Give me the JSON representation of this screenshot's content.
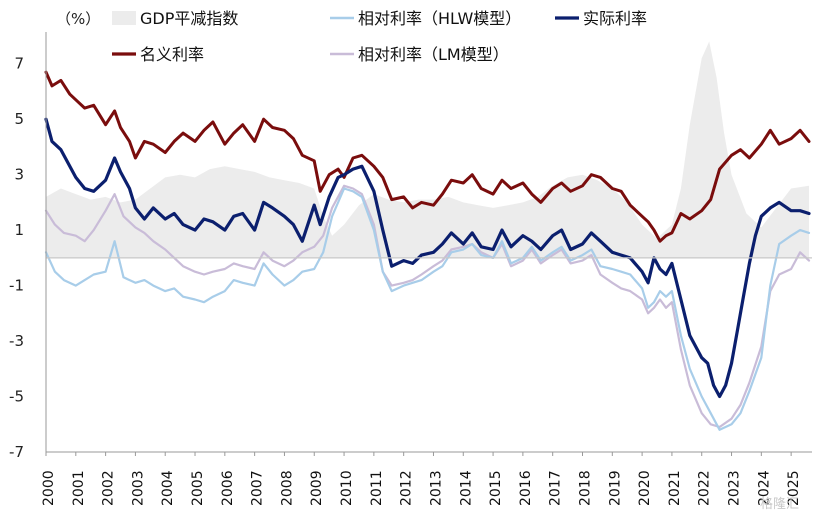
{
  "chart_data": {
    "type": "line",
    "unit_label": "（%）",
    "colors": {
      "gdp_deflator": "#ececec",
      "relative_hlw": "#a8cde9",
      "real_rate": "#0b1f6e",
      "nominal_rate": "#7a0d0d",
      "relative_lm": "#c9bcd8",
      "negative_tick": "#e02020"
    },
    "legend": [
      {
        "key": "gdp_deflator",
        "label": "GDP平减指数",
        "marker": "area"
      },
      {
        "key": "relative_hlw",
        "label": "相对利率（HLW模型）",
        "marker": "line"
      },
      {
        "key": "real_rate",
        "label": "实际利率",
        "marker": "line"
      },
      {
        "key": "nominal_rate",
        "label": "名义利率",
        "marker": "line"
      },
      {
        "key": "relative_lm",
        "label": "相对利率（LM模型）",
        "marker": "line"
      }
    ],
    "y_ticks": [
      "7",
      "5",
      "3",
      "1",
      "-1",
      "-3",
      "-5",
      "-7"
    ],
    "ylim": [
      -7,
      8
    ],
    "x_ticks": [
      "2000",
      "2001",
      "2002",
      "2003",
      "2004",
      "2005",
      "2006",
      "2007",
      "2008",
      "2009",
      "2010",
      "2011",
      "2012",
      "2013",
      "2014",
      "2015",
      "2016",
      "2017",
      "2018",
      "2019",
      "2020",
      "2021",
      "2022",
      "2023",
      "2024",
      "2025"
    ],
    "xlim": [
      2000.0,
      2025.7
    ],
    "series": [
      {
        "key": "gdp_deflator",
        "type": "area",
        "x": [
          2000.0,
          2000.5,
          2001.0,
          2001.5,
          2002.0,
          2002.5,
          2003.0,
          2003.5,
          2004.0,
          2004.5,
          2005.0,
          2005.5,
          2006.0,
          2006.5,
          2007.0,
          2007.5,
          2008.0,
          2008.5,
          2009.0,
          2009.3,
          2009.6,
          2010.0,
          2010.5,
          2011.0,
          2011.5,
          2012.0,
          2012.5,
          2013.0,
          2013.5,
          2014.0,
          2014.5,
          2015.0,
          2015.5,
          2016.0,
          2016.5,
          2017.0,
          2017.5,
          2018.0,
          2018.5,
          2019.0,
          2019.5,
          2020.0,
          2020.5,
          2021.0,
          2021.3,
          2021.6,
          2022.0,
          2022.25,
          2022.5,
          2022.75,
          2023.0,
          2023.5,
          2024.0,
          2024.5,
          2025.0,
          2025.6
        ],
        "y": [
          2.2,
          2.5,
          2.3,
          2.1,
          2.2,
          2.0,
          2.1,
          2.5,
          2.9,
          3.0,
          2.9,
          3.2,
          3.3,
          3.2,
          3.1,
          2.9,
          2.8,
          2.7,
          2.5,
          1.5,
          0.8,
          1.2,
          1.9,
          2.3,
          2.1,
          2.0,
          2.1,
          2.1,
          2.2,
          2.0,
          1.9,
          1.8,
          1.9,
          2.0,
          2.2,
          2.6,
          2.9,
          3.0,
          2.8,
          2.5,
          2.0,
          1.2,
          0.7,
          1.2,
          2.5,
          4.8,
          7.2,
          7.8,
          6.5,
          4.5,
          3.0,
          1.6,
          1.1,
          1.8,
          2.5,
          2.6
        ]
      },
      {
        "key": "nominal_rate",
        "type": "line",
        "x": [
          2000.0,
          2000.2,
          2000.5,
          2000.8,
          2001.0,
          2001.3,
          2001.6,
          2002.0,
          2002.3,
          2002.5,
          2002.8,
          2003.0,
          2003.3,
          2003.6,
          2004.0,
          2004.3,
          2004.6,
          2005.0,
          2005.3,
          2005.6,
          2006.0,
          2006.3,
          2006.6,
          2007.0,
          2007.3,
          2007.6,
          2008.0,
          2008.3,
          2008.6,
          2009.0,
          2009.2,
          2009.5,
          2009.8,
          2010.0,
          2010.3,
          2010.6,
          2011.0,
          2011.3,
          2011.6,
          2012.0,
          2012.3,
          2012.6,
          2013.0,
          2013.3,
          2013.6,
          2014.0,
          2014.3,
          2014.6,
          2015.0,
          2015.3,
          2015.6,
          2016.0,
          2016.3,
          2016.6,
          2017.0,
          2017.3,
          2017.6,
          2018.0,
          2018.3,
          2018.6,
          2019.0,
          2019.3,
          2019.6,
          2020.0,
          2020.2,
          2020.4,
          2020.6,
          2020.8,
          2021.0,
          2021.3,
          2021.6,
          2022.0,
          2022.3,
          2022.6,
          2023.0,
          2023.3,
          2023.6,
          2024.0,
          2024.3,
          2024.6,
          2025.0,
          2025.3,
          2025.6
        ],
        "y": [
          6.7,
          6.2,
          6.4,
          5.9,
          5.7,
          5.4,
          5.5,
          4.8,
          5.3,
          4.7,
          4.2,
          3.6,
          4.2,
          4.1,
          3.8,
          4.2,
          4.5,
          4.2,
          4.6,
          4.9,
          4.1,
          4.5,
          4.8,
          4.2,
          5.0,
          4.7,
          4.6,
          4.3,
          3.7,
          3.5,
          2.4,
          3.0,
          3.2,
          2.9,
          3.6,
          3.7,
          3.3,
          2.9,
          2.1,
          2.2,
          1.8,
          2.0,
          1.9,
          2.3,
          2.8,
          2.7,
          3.0,
          2.5,
          2.3,
          2.8,
          2.5,
          2.7,
          2.3,
          2.0,
          2.5,
          2.7,
          2.4,
          2.6,
          3.0,
          2.9,
          2.5,
          2.4,
          1.9,
          1.5,
          1.3,
          1.0,
          0.6,
          0.8,
          0.9,
          1.6,
          1.4,
          1.7,
          2.1,
          3.2,
          3.7,
          3.9,
          3.6,
          4.1,
          4.6,
          4.1,
          4.3,
          4.6,
          4.2
        ]
      },
      {
        "key": "real_rate",
        "type": "line",
        "x": [
          2000.0,
          2000.2,
          2000.5,
          2000.8,
          2001.0,
          2001.3,
          2001.6,
          2002.0,
          2002.3,
          2002.5,
          2002.8,
          2003.0,
          2003.3,
          2003.6,
          2004.0,
          2004.3,
          2004.6,
          2005.0,
          2005.3,
          2005.6,
          2006.0,
          2006.3,
          2006.6,
          2007.0,
          2007.3,
          2007.6,
          2008.0,
          2008.3,
          2008.6,
          2009.0,
          2009.2,
          2009.5,
          2009.8,
          2010.0,
          2010.3,
          2010.6,
          2011.0,
          2011.3,
          2011.6,
          2012.0,
          2012.3,
          2012.6,
          2013.0,
          2013.3,
          2013.6,
          2014.0,
          2014.3,
          2014.6,
          2015.0,
          2015.3,
          2015.6,
          2016.0,
          2016.3,
          2016.6,
          2017.0,
          2017.3,
          2017.6,
          2018.0,
          2018.3,
          2018.6,
          2019.0,
          2019.3,
          2019.6,
          2020.0,
          2020.2,
          2020.4,
          2020.6,
          2020.8,
          2021.0,
          2021.3,
          2021.6,
          2022.0,
          2022.2,
          2022.4,
          2022.6,
          2022.8,
          2023.0,
          2023.2,
          2023.4,
          2023.6,
          2023.8,
          2024.0,
          2024.3,
          2024.6,
          2025.0,
          2025.3,
          2025.6
        ],
        "y": [
          5.0,
          4.2,
          3.9,
          3.3,
          2.9,
          2.5,
          2.4,
          2.8,
          3.6,
          3.1,
          2.5,
          1.8,
          1.4,
          1.8,
          1.4,
          1.6,
          1.2,
          1.0,
          1.4,
          1.3,
          1.0,
          1.5,
          1.6,
          1.0,
          2.0,
          1.8,
          1.5,
          1.2,
          0.6,
          1.9,
          1.2,
          2.2,
          2.9,
          3.0,
          3.2,
          3.3,
          2.4,
          1.0,
          -0.3,
          -0.1,
          -0.2,
          0.1,
          0.2,
          0.5,
          0.9,
          0.5,
          0.9,
          0.4,
          0.3,
          1.0,
          0.4,
          0.8,
          0.6,
          0.3,
          0.8,
          1.0,
          0.3,
          0.5,
          0.9,
          0.6,
          0.2,
          0.1,
          0.0,
          -0.5,
          -0.9,
          0.0,
          -0.4,
          -0.6,
          -0.2,
          -1.5,
          -2.8,
          -3.6,
          -3.8,
          -4.6,
          -5.0,
          -4.6,
          -3.8,
          -2.6,
          -1.4,
          -0.2,
          0.8,
          1.5,
          1.8,
          2.0,
          1.7,
          1.7,
          1.6
        ]
      },
      {
        "key": "relative_hlw",
        "type": "line",
        "x": [
          2000.0,
          2000.3,
          2000.6,
          2001.0,
          2001.3,
          2001.6,
          2002.0,
          2002.3,
          2002.6,
          2003.0,
          2003.3,
          2003.6,
          2004.0,
          2004.3,
          2004.6,
          2005.0,
          2005.3,
          2005.6,
          2006.0,
          2006.3,
          2006.6,
          2007.0,
          2007.3,
          2007.6,
          2008.0,
          2008.3,
          2008.6,
          2009.0,
          2009.3,
          2009.6,
          2010.0,
          2010.3,
          2010.6,
          2011.0,
          2011.3,
          2011.6,
          2012.0,
          2012.3,
          2012.6,
          2013.0,
          2013.3,
          2013.6,
          2014.0,
          2014.3,
          2014.6,
          2015.0,
          2015.3,
          2015.6,
          2016.0,
          2016.3,
          2016.6,
          2017.0,
          2017.3,
          2017.6,
          2018.0,
          2018.3,
          2018.6,
          2019.0,
          2019.3,
          2019.6,
          2020.0,
          2020.2,
          2020.4,
          2020.6,
          2020.8,
          2021.0,
          2021.3,
          2021.6,
          2022.0,
          2022.3,
          2022.6,
          2023.0,
          2023.3,
          2023.6,
          2024.0,
          2024.3,
          2024.6,
          2025.0,
          2025.3,
          2025.6
        ],
        "y": [
          0.2,
          -0.5,
          -0.8,
          -1.0,
          -0.8,
          -0.6,
          -0.5,
          0.6,
          -0.7,
          -0.9,
          -0.8,
          -1.0,
          -1.2,
          -1.1,
          -1.4,
          -1.5,
          -1.6,
          -1.4,
          -1.2,
          -0.8,
          -0.9,
          -1.0,
          -0.2,
          -0.6,
          -1.0,
          -0.8,
          -0.5,
          -0.4,
          0.2,
          1.5,
          2.5,
          2.4,
          2.2,
          1.0,
          -0.5,
          -1.2,
          -1.0,
          -0.9,
          -0.8,
          -0.5,
          -0.3,
          0.2,
          0.3,
          0.5,
          0.1,
          0.0,
          0.6,
          -0.2,
          0.0,
          0.4,
          -0.1,
          0.2,
          0.4,
          -0.1,
          0.1,
          0.3,
          -0.3,
          -0.4,
          -0.5,
          -0.6,
          -1.1,
          -1.8,
          -1.6,
          -1.2,
          -1.4,
          -1.2,
          -2.8,
          -4.0,
          -5.0,
          -5.6,
          -6.2,
          -6.0,
          -5.6,
          -4.8,
          -3.6,
          -1.0,
          0.5,
          0.8,
          1.0,
          0.9
        ]
      },
      {
        "key": "relative_lm",
        "type": "line",
        "x": [
          2000.0,
          2000.3,
          2000.6,
          2001.0,
          2001.3,
          2001.6,
          2002.0,
          2002.3,
          2002.6,
          2003.0,
          2003.3,
          2003.6,
          2004.0,
          2004.3,
          2004.6,
          2005.0,
          2005.3,
          2005.6,
          2006.0,
          2006.3,
          2006.6,
          2007.0,
          2007.3,
          2007.6,
          2008.0,
          2008.3,
          2008.6,
          2009.0,
          2009.3,
          2009.6,
          2010.0,
          2010.3,
          2010.6,
          2011.0,
          2011.3,
          2011.6,
          2012.0,
          2012.3,
          2012.6,
          2013.0,
          2013.3,
          2013.6,
          2014.0,
          2014.3,
          2014.6,
          2015.0,
          2015.3,
          2015.6,
          2016.0,
          2016.3,
          2016.6,
          2017.0,
          2017.3,
          2017.6,
          2018.0,
          2018.3,
          2018.6,
          2019.0,
          2019.3,
          2019.6,
          2020.0,
          2020.2,
          2020.4,
          2020.6,
          2020.8,
          2021.0,
          2021.3,
          2021.6,
          2022.0,
          2022.3,
          2022.6,
          2023.0,
          2023.3,
          2023.6,
          2024.0,
          2024.3,
          2024.6,
          2025.0,
          2025.3,
          2025.6
        ],
        "y": [
          1.7,
          1.2,
          0.9,
          0.8,
          0.6,
          1.0,
          1.7,
          2.3,
          1.5,
          1.1,
          0.9,
          0.6,
          0.3,
          0.0,
          -0.3,
          -0.5,
          -0.6,
          -0.5,
          -0.4,
          -0.2,
          -0.3,
          -0.4,
          0.2,
          -0.1,
          -0.3,
          -0.1,
          0.2,
          0.4,
          0.8,
          1.8,
          2.6,
          2.5,
          2.3,
          1.2,
          -0.5,
          -1.0,
          -0.9,
          -0.8,
          -0.6,
          -0.3,
          -0.1,
          0.3,
          0.4,
          0.5,
          0.2,
          0.0,
          0.5,
          -0.3,
          -0.1,
          0.3,
          -0.2,
          0.1,
          0.3,
          -0.2,
          -0.1,
          0.1,
          -0.6,
          -0.9,
          -1.1,
          -1.2,
          -1.5,
          -2.0,
          -1.8,
          -1.5,
          -1.8,
          -1.6,
          -3.3,
          -4.6,
          -5.6,
          -6.0,
          -6.1,
          -5.8,
          -5.3,
          -4.5,
          -3.2,
          -1.2,
          -0.6,
          -0.4,
          0.2,
          -0.1
        ]
      }
    ],
    "watermark": "格隆汇"
  }
}
